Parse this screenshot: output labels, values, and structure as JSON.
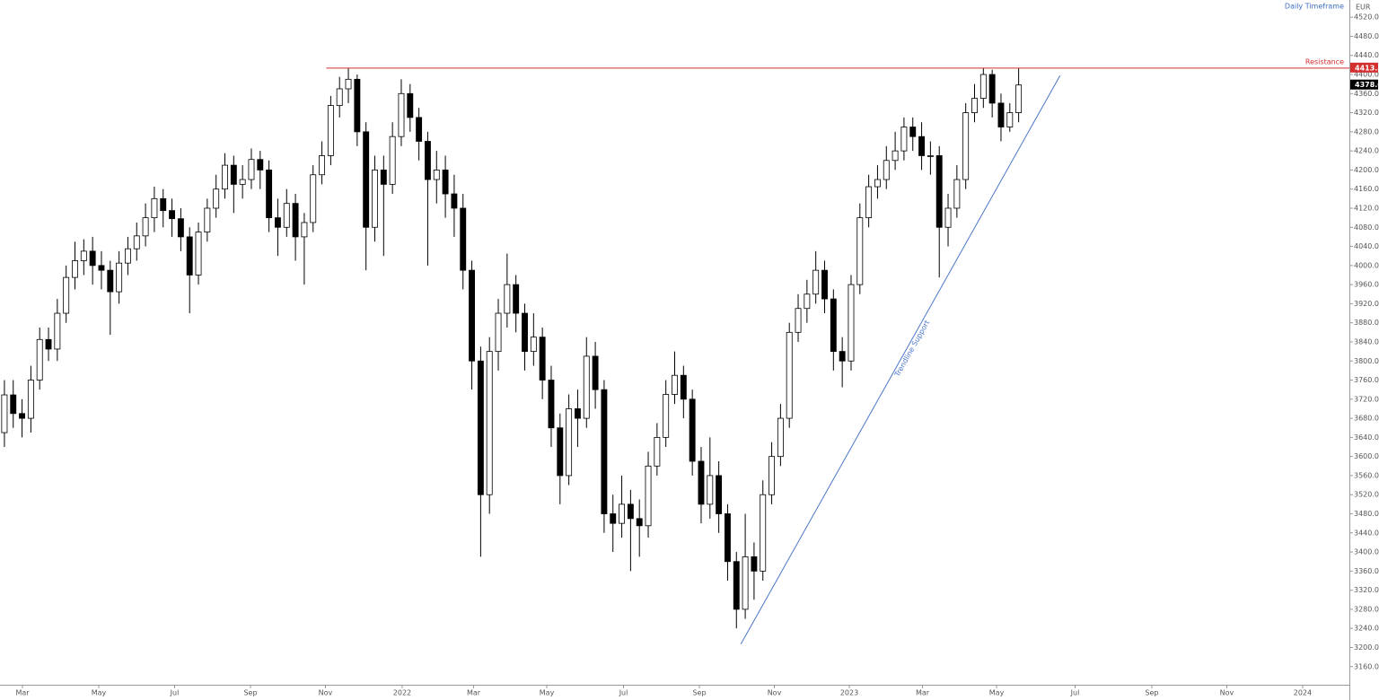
{
  "chart_data": {
    "type": "candlestick",
    "currency": "EUR",
    "timeframe": "Daily Timeframe",
    "up_color": "#ffffff",
    "down_color": "#000000",
    "border_color": "#000000",
    "open": [
      3650,
      3729,
      3690,
      3680,
      3760,
      3845,
      3825,
      3900,
      3975,
      4010,
      4030,
      4000,
      3990,
      3945,
      4005,
      4035,
      4062,
      4100,
      4140,
      4115,
      4098,
      4060,
      3980,
      4070,
      4120,
      4160,
      4210,
      4170,
      4180,
      4222,
      4200,
      4100,
      4080,
      4130,
      4060,
      4090,
      4190,
      4230,
      4335,
      4370,
      4390,
      4280,
      4080,
      4200,
      4170,
      4270,
      4360,
      4310,
      4260,
      4180,
      4200,
      4150,
      4120,
      3990,
      3800,
      3520,
      3820,
      3900,
      3960,
      3900,
      3820,
      3850,
      3760,
      3660,
      3560,
      3700,
      3680,
      3810,
      3740,
      3480,
      3460,
      3500,
      3470,
      3455,
      3580,
      3640,
      3730,
      3770,
      3720,
      3590,
      3500,
      3560,
      3480,
      3380,
      3280,
      3390,
      3360,
      3520,
      3600,
      3680,
      3860,
      3910,
      3940,
      3990,
      3930,
      3820,
      3800,
      3960,
      4100,
      4165,
      4180,
      4220,
      4240,
      4290,
      4270,
      4230,
      4230,
      4080,
      4120,
      4180,
      4320,
      4350,
      4400,
      4340,
      4290,
      4320
    ],
    "high": [
      3760,
      3760,
      3720,
      3790,
      3870,
      3870,
      3930,
      4000,
      4050,
      4055,
      4060,
      4030,
      4010,
      4030,
      4060,
      4090,
      4130,
      4165,
      4160,
      4140,
      4120,
      4080,
      4090,
      4140,
      4190,
      4235,
      4230,
      4210,
      4245,
      4240,
      4220,
      4140,
      4160,
      4150,
      4110,
      4210,
      4260,
      4355,
      4395,
      4413,
      4400,
      4300,
      4230,
      4230,
      4300,
      4390,
      4380,
      4330,
      4280,
      4240,
      4230,
      4190,
      4150,
      4010,
      3830,
      3850,
      3930,
      4025,
      3980,
      3920,
      3900,
      3870,
      3790,
      3690,
      3730,
      3740,
      3850,
      3840,
      3760,
      3520,
      3560,
      3530,
      3510,
      3610,
      3670,
      3760,
      3820,
      3790,
      3740,
      3620,
      3640,
      3590,
      3500,
      3400,
      3480,
      3420,
      3550,
      3630,
      3710,
      3880,
      3940,
      3970,
      4030,
      4010,
      3950,
      3850,
      3980,
      4130,
      4190,
      4210,
      4250,
      4280,
      4310,
      4310,
      4300,
      4260,
      4250,
      4150,
      4210,
      4340,
      4380,
      4413,
      4410,
      4360,
      4340,
      4413
    ],
    "low": [
      3620,
      3660,
      3640,
      3650,
      3740,
      3800,
      3800,
      3880,
      3950,
      3980,
      3960,
      3950,
      3855,
      3920,
      3980,
      4010,
      4040,
      4070,
      4080,
      4060,
      4030,
      3900,
      3960,
      4050,
      4100,
      4140,
      4110,
      4140,
      4160,
      4160,
      4070,
      4020,
      4060,
      4010,
      3960,
      4070,
      4170,
      4210,
      4310,
      4340,
      4250,
      3990,
      4050,
      4020,
      4150,
      4250,
      4280,
      4220,
      4000,
      4130,
      4100,
      4060,
      3950,
      3740,
      3390,
      3480,
      3780,
      3870,
      3860,
      3780,
      3790,
      3720,
      3620,
      3500,
      3540,
      3620,
      3660,
      3700,
      3440,
      3400,
      3430,
      3360,
      3390,
      3430,
      3560,
      3620,
      3710,
      3680,
      3560,
      3460,
      3470,
      3440,
      3340,
      3240,
      3260,
      3300,
      3340,
      3500,
      3580,
      3660,
      3840,
      3880,
      3920,
      3900,
      3780,
      3745,
      3780,
      3940,
      4080,
      4140,
      4160,
      4200,
      4220,
      4240,
      4200,
      4190,
      3975,
      4040,
      4100,
      4160,
      4300,
      4330,
      4310,
      4260,
      4280,
      4300
    ],
    "close": [
      3729,
      3690,
      3680,
      3760,
      3845,
      3825,
      3900,
      3975,
      4010,
      4030,
      4000,
      3990,
      3945,
      4005,
      4035,
      4062,
      4100,
      4140,
      4115,
      4098,
      4060,
      3980,
      4070,
      4120,
      4160,
      4210,
      4170,
      4180,
      4222,
      4200,
      4100,
      4080,
      4130,
      4060,
      4090,
      4190,
      4230,
      4335,
      4370,
      4390,
      4280,
      4080,
      4200,
      4170,
      4270,
      4360,
      4310,
      4260,
      4180,
      4200,
      4150,
      4120,
      3990,
      3800,
      3520,
      3820,
      3900,
      3960,
      3900,
      3820,
      3850,
      3760,
      3660,
      3560,
      3700,
      3680,
      3810,
      3740,
      3480,
      3460,
      3500,
      3470,
      3455,
      3580,
      3640,
      3730,
      3770,
      3720,
      3590,
      3500,
      3560,
      3480,
      3380,
      3280,
      3390,
      3360,
      3520,
      3600,
      3680,
      3860,
      3910,
      3940,
      3990,
      3930,
      3820,
      3800,
      3960,
      4100,
      4165,
      4180,
      4220,
      4240,
      4290,
      4270,
      4230,
      4230,
      4080,
      4120,
      4180,
      4320,
      4350,
      4400,
      4340,
      4290,
      4320,
      4378
    ],
    "xlim": [
      -0.5,
      152.5
    ],
    "xticks": [
      {
        "value": 2.05,
        "label": "Mar"
      },
      {
        "value": 10.7,
        "label": "May"
      },
      {
        "value": 19.3,
        "label": "Jul"
      },
      {
        "value": 27.9,
        "label": "Sep"
      },
      {
        "value": 36.4,
        "label": "Nov"
      },
      {
        "value": 45.1,
        "label": "2022"
      },
      {
        "value": 53.2,
        "label": "Mar"
      },
      {
        "value": 61.5,
        "label": "May"
      },
      {
        "value": 70.2,
        "label": "Jul"
      },
      {
        "value": 78.8,
        "label": "Sep"
      },
      {
        "value": 87.3,
        "label": "Nov"
      },
      {
        "value": 95.8,
        "label": "2023"
      },
      {
        "value": 104.1,
        "label": "Mar"
      },
      {
        "value": 112.5,
        "label": "May"
      },
      {
        "value": 121.4,
        "label": "Jul"
      },
      {
        "value": 130.1,
        "label": "Sep"
      },
      {
        "value": 138.6,
        "label": "Nov"
      },
      {
        "value": 147.2,
        "label": "2024"
      }
    ],
    "ylim": [
      3122,
      4556
    ],
    "yticks": [
      {
        "value": 3160,
        "label": "3160.0"
      },
      {
        "value": 3200,
        "label": "3200.0"
      },
      {
        "value": 3240,
        "label": "3240.0"
      },
      {
        "value": 3280,
        "label": "3280.0"
      },
      {
        "value": 3320,
        "label": "3320.0"
      },
      {
        "value": 3360,
        "label": "3360.0"
      },
      {
        "value": 3400,
        "label": "3400.0"
      },
      {
        "value": 3440,
        "label": "3440.0"
      },
      {
        "value": 3480,
        "label": "3480.0"
      },
      {
        "value": 3520,
        "label": "3520.0"
      },
      {
        "value": 3560,
        "label": "3560.0"
      },
      {
        "value": 3600,
        "label": "3600.0"
      },
      {
        "value": 3640,
        "label": "3640.0"
      },
      {
        "value": 3680,
        "label": "3680.0"
      },
      {
        "value": 3720,
        "label": "3720.0"
      },
      {
        "value": 3760,
        "label": "3760.0"
      },
      {
        "value": 3800,
        "label": "3800.0"
      },
      {
        "value": 3840,
        "label": "3840.0"
      },
      {
        "value": 3880,
        "label": "3880.0"
      },
      {
        "value": 3920,
        "label": "3920.0"
      },
      {
        "value": 3960,
        "label": "3960.0"
      },
      {
        "value": 4000,
        "label": "4000.0"
      },
      {
        "value": 4040,
        "label": "4040.0"
      },
      {
        "value": 4080,
        "label": "4080.0"
      },
      {
        "value": 4120,
        "label": "4120.0"
      },
      {
        "value": 4160,
        "label": "4160.0"
      },
      {
        "value": 4200,
        "label": "4200.0"
      },
      {
        "value": 4240,
        "label": "4240.0"
      },
      {
        "value": 4280,
        "label": "4280.0"
      },
      {
        "value": 4320,
        "label": "4320.0"
      },
      {
        "value": 4360,
        "label": "4360.0"
      },
      {
        "value": 4400,
        "label": "4400.0"
      },
      {
        "value": 4440,
        "label": "4440.0"
      },
      {
        "value": 4480,
        "label": "4480.0"
      },
      {
        "value": 4520,
        "label": "4520.0"
      }
    ],
    "last_price": {
      "value": 4378,
      "label": "4378.0",
      "color": "#000000"
    },
    "annotations": [
      {
        "type": "hline",
        "label": "Resistance",
        "value": 4413.5,
        "x_start": 36.5,
        "color": "#d32f2f"
      },
      {
        "type": "trendline",
        "label": "Trendline Support",
        "x": [
          83.5,
          119.7
        ],
        "y": [
          3207,
          4398
        ],
        "color": "#4a77c9"
      }
    ]
  }
}
